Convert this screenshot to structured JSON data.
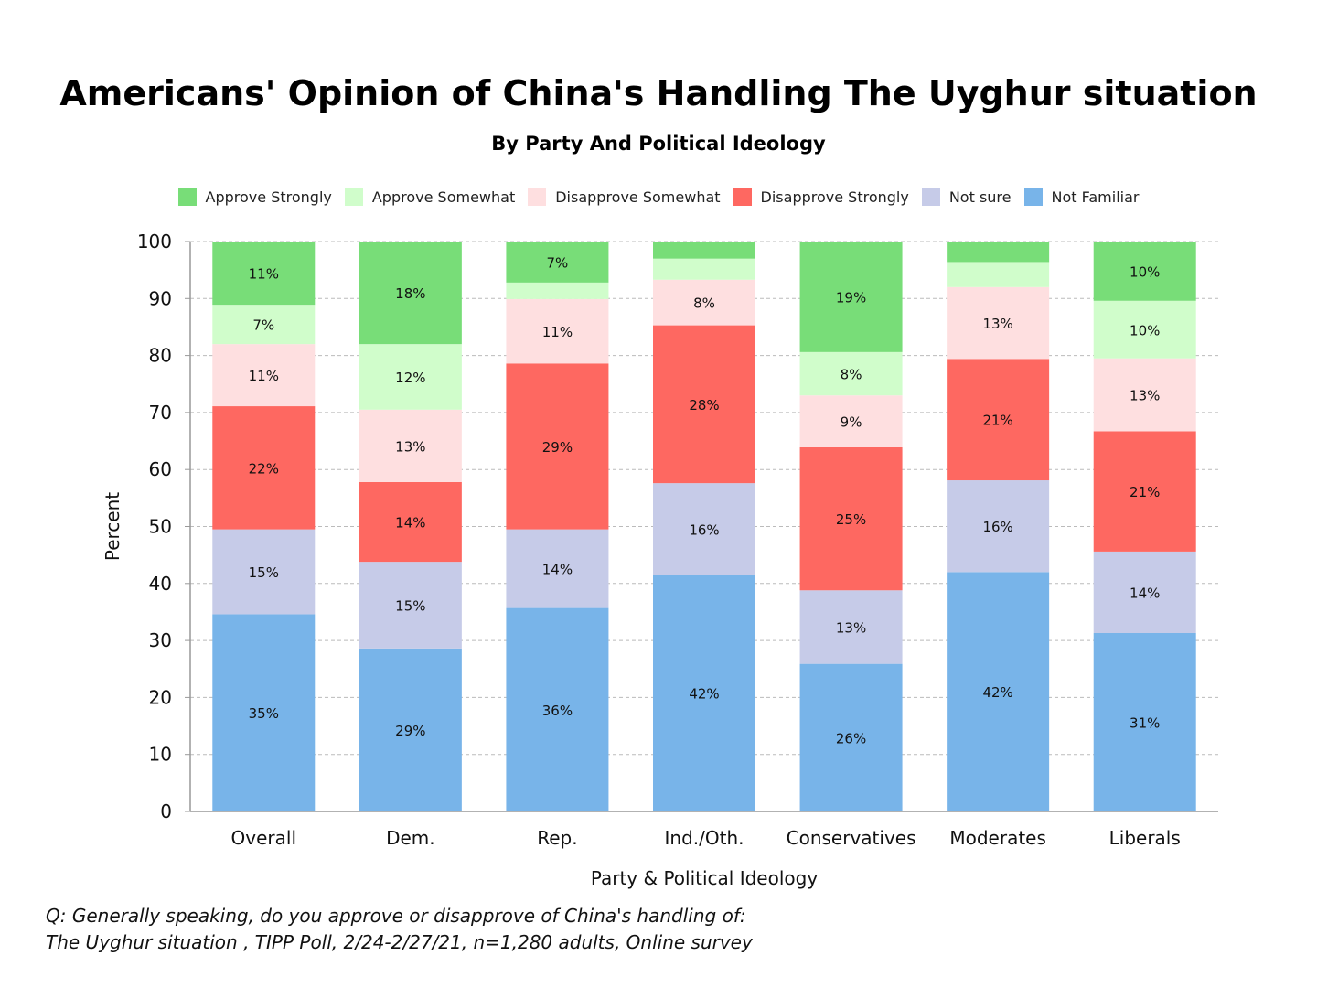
{
  "title": "Americans' Opinion of China's Handling The Uyghur situation",
  "subtitle": "By Party And Political Ideology",
  "footnote": {
    "line1": "Q:  Generally speaking, do you approve or disapprove of China's handling of:",
    "line2": "The Uyghur situation , TIPP Poll, 2/24-2/27/21, n=1,280 adults, Online survey"
  },
  "chart_data": {
    "type": "bar",
    "stacked": true,
    "xlabel": "Party & Political Ideology",
    "ylabel": "Percent",
    "ylim": [
      0,
      100
    ],
    "yticks": [
      0,
      10,
      20,
      30,
      40,
      50,
      60,
      70,
      80,
      90,
      100
    ],
    "grid": true,
    "legend_position": "top",
    "categories": [
      "Overall",
      "Dem.",
      "Rep.",
      "Ind./Oth.",
      "Conservatives",
      "Moderates",
      "Liberals"
    ],
    "series": [
      {
        "name": "Not Familiar",
        "color": "#78b4e9",
        "values": [
          34.6,
          28.6,
          35.7,
          41.5,
          25.9,
          42.0,
          31.3
        ],
        "labels": [
          "35%",
          "29%",
          "36%",
          "42%",
          "26%",
          "42%",
          "31%"
        ]
      },
      {
        "name": "Not sure",
        "color": "#c6cbe8",
        "values": [
          14.9,
          15.2,
          13.8,
          16.1,
          12.9,
          16.1,
          14.3
        ],
        "labels": [
          "15%",
          "15%",
          "14%",
          "16%",
          "13%",
          "16%",
          "14%"
        ]
      },
      {
        "name": "Disapprove Strongly",
        "color": "#fe6861",
        "values": [
          21.6,
          14.0,
          29.1,
          27.7,
          25.1,
          21.3,
          21.1
        ],
        "labels": [
          "22%",
          "14%",
          "29%",
          "28%",
          "25%",
          "21%",
          "21%"
        ]
      },
      {
        "name": "Disapprove Somewhat",
        "color": "#fedfe0",
        "values": [
          10.9,
          12.7,
          11.3,
          8.0,
          9.1,
          12.6,
          12.8
        ],
        "labels": [
          "11%",
          "13%",
          "11%",
          "8%",
          "9%",
          "13%",
          "13%"
        ]
      },
      {
        "name": "Approve Somewhat",
        "color": "#d0fdcb",
        "values": [
          6.9,
          11.5,
          2.9,
          3.7,
          7.6,
          4.4,
          10.1
        ],
        "labels": [
          "7%",
          "12%",
          "",
          "",
          "8%",
          "",
          "10%"
        ]
      },
      {
        "name": "Approve Strongly",
        "color": "#78dd78",
        "values": [
          11.1,
          18.0,
          7.2,
          3.0,
          19.4,
          3.6,
          10.4
        ],
        "labels": [
          "11%",
          "18%",
          "7%",
          "",
          "19%",
          "",
          "10%"
        ]
      }
    ],
    "legend_order": [
      "Approve Strongly",
      "Approve Somewhat",
      "Disapprove Somewhat",
      "Disapprove Strongly",
      "Not sure",
      "Not Familiar"
    ]
  }
}
